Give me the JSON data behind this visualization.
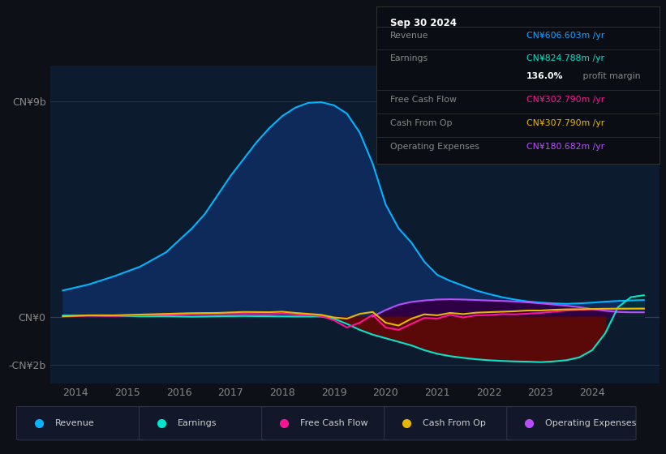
{
  "bg_color": "#0d1117",
  "plot_bg": "#0d1b2e",
  "grid_color": "#263549",
  "yticks_labels": [
    "CN¥9b",
    "CN¥0",
    "-CN¥2b"
  ],
  "yticks_values": [
    9000000000,
    0,
    -2000000000
  ],
  "ylim": [
    -2800000000,
    10500000000
  ],
  "xlim": [
    2013.5,
    2025.3
  ],
  "xticks": [
    2014,
    2015,
    2016,
    2017,
    2018,
    2019,
    2020,
    2021,
    2022,
    2023,
    2024
  ],
  "revenue_color": "#00b4ff",
  "revenue_fill": "#0d2a5a",
  "earnings_color": "#00e5cc",
  "earnings_fill_neg": "#5a0808",
  "earnings_fill_pos": "#003322",
  "fcf_color": "#ff1493",
  "cashop_color": "#e6b800",
  "opex_color": "#b84dff",
  "opex_fill": "#2d0044",
  "revenue_x": [
    2013.75,
    2014.25,
    2014.75,
    2015.25,
    2015.75,
    2016.0,
    2016.25,
    2016.5,
    2016.75,
    2017.0,
    2017.25,
    2017.5,
    2017.75,
    2018.0,
    2018.25,
    2018.5,
    2018.75,
    2019.0,
    2019.25,
    2019.5,
    2019.75,
    2020.0,
    2020.25,
    2020.5,
    2020.75,
    2021.0,
    2021.25,
    2021.5,
    2021.75,
    2022.0,
    2022.25,
    2022.5,
    2022.75,
    2023.0,
    2023.25,
    2023.5,
    2023.75,
    2024.0,
    2024.25,
    2024.5,
    2024.75,
    2025.0
  ],
  "revenue_y": [
    1100000000,
    1350000000,
    1700000000,
    2100000000,
    2700000000,
    3200000000,
    3700000000,
    4300000000,
    5100000000,
    5900000000,
    6600000000,
    7300000000,
    7900000000,
    8400000000,
    8750000000,
    8950000000,
    8980000000,
    8850000000,
    8500000000,
    7700000000,
    6400000000,
    4700000000,
    3700000000,
    3100000000,
    2300000000,
    1750000000,
    1500000000,
    1300000000,
    1100000000,
    950000000,
    820000000,
    720000000,
    640000000,
    590000000,
    560000000,
    540000000,
    560000000,
    590000000,
    630000000,
    660000000,
    680000000,
    700000000
  ],
  "earnings_x": [
    2013.75,
    2014.25,
    2014.75,
    2015.25,
    2015.75,
    2016.25,
    2016.75,
    2017.25,
    2017.75,
    2018.25,
    2018.75,
    2019.0,
    2019.25,
    2019.5,
    2019.75,
    2020.0,
    2020.25,
    2020.5,
    2020.75,
    2021.0,
    2021.25,
    2021.5,
    2021.75,
    2022.0,
    2022.25,
    2022.5,
    2022.75,
    2023.0,
    2023.25,
    2023.5,
    2023.75,
    2024.0,
    2024.25,
    2024.5,
    2024.75,
    2025.0
  ],
  "earnings_y": [
    50000000,
    50000000,
    30000000,
    20000000,
    20000000,
    0,
    20000000,
    30000000,
    20000000,
    10000000,
    10000000,
    -80000000,
    -300000000,
    -550000000,
    -750000000,
    -900000000,
    -1050000000,
    -1200000000,
    -1400000000,
    -1550000000,
    -1650000000,
    -1720000000,
    -1780000000,
    -1820000000,
    -1850000000,
    -1870000000,
    -1880000000,
    -1900000000,
    -1870000000,
    -1820000000,
    -1700000000,
    -1400000000,
    -700000000,
    400000000,
    820000000,
    900000000
  ],
  "fcf_x": [
    2013.75,
    2014.25,
    2014.75,
    2015.25,
    2015.75,
    2016.25,
    2016.75,
    2017.25,
    2017.75,
    2018.0,
    2018.25,
    2018.5,
    2018.75,
    2019.0,
    2019.25,
    2019.5,
    2019.75,
    2020.0,
    2020.25,
    2020.5,
    2020.75,
    2021.0,
    2021.25,
    2021.5,
    2021.75,
    2022.0,
    2022.25,
    2022.5,
    2022.75,
    2023.0,
    2023.25,
    2023.5,
    2023.75,
    2024.0,
    2024.25,
    2024.5,
    2024.75,
    2025.0
  ],
  "fcf_y": [
    10000000,
    40000000,
    30000000,
    60000000,
    90000000,
    100000000,
    110000000,
    120000000,
    110000000,
    130000000,
    100000000,
    70000000,
    30000000,
    -150000000,
    -450000000,
    -250000000,
    80000000,
    -450000000,
    -550000000,
    -300000000,
    -50000000,
    -80000000,
    80000000,
    -30000000,
    60000000,
    70000000,
    110000000,
    100000000,
    130000000,
    160000000,
    210000000,
    260000000,
    290000000,
    310000000,
    320000000,
    320000000,
    330000000,
    340000000
  ],
  "cashop_x": [
    2013.75,
    2014.25,
    2014.75,
    2015.25,
    2015.75,
    2016.25,
    2016.75,
    2017.25,
    2017.75,
    2018.0,
    2018.25,
    2018.5,
    2018.75,
    2019.0,
    2019.25,
    2019.5,
    2019.75,
    2020.0,
    2020.25,
    2020.5,
    2020.75,
    2021.0,
    2021.25,
    2021.5,
    2021.75,
    2022.0,
    2022.25,
    2022.5,
    2022.75,
    2023.0,
    2023.25,
    2023.5,
    2023.75,
    2024.0,
    2024.25,
    2024.5,
    2024.75,
    2025.0
  ],
  "cashop_y": [
    20000000,
    60000000,
    60000000,
    90000000,
    120000000,
    150000000,
    160000000,
    200000000,
    190000000,
    210000000,
    160000000,
    120000000,
    80000000,
    -30000000,
    -80000000,
    120000000,
    200000000,
    -250000000,
    -370000000,
    -80000000,
    100000000,
    60000000,
    160000000,
    110000000,
    170000000,
    190000000,
    210000000,
    230000000,
    260000000,
    260000000,
    290000000,
    310000000,
    315000000,
    325000000,
    335000000,
    340000000,
    340000000,
    340000000
  ],
  "opex_x": [
    2019.75,
    2020.0,
    2020.25,
    2020.5,
    2020.75,
    2021.0,
    2021.25,
    2021.5,
    2021.75,
    2022.0,
    2022.25,
    2022.5,
    2022.75,
    2023.0,
    2023.25,
    2023.5,
    2023.75,
    2024.0,
    2024.25,
    2024.5,
    2024.75,
    2025.0
  ],
  "opex_y": [
    10000000,
    280000000,
    500000000,
    620000000,
    680000000,
    720000000,
    730000000,
    720000000,
    700000000,
    680000000,
    660000000,
    640000000,
    600000000,
    560000000,
    510000000,
    460000000,
    400000000,
    320000000,
    250000000,
    200000000,
    185000000,
    185000000
  ],
  "info_box": {
    "date": "Sep 30 2024",
    "bg_color": "#0a0e14",
    "border_color": "#333333",
    "rows": [
      {
        "label": "Revenue",
        "value": "CN¥606.603m /yr",
        "value_color": "#1a9fff"
      },
      {
        "label": "Earnings",
        "value": "CN¥824.788m /yr",
        "value_color": "#00e5cc"
      },
      {
        "label": "",
        "bold": "136.0%",
        "rest": " profit margin",
        "bold_color": "#ffffff",
        "rest_color": "#888888"
      },
      {
        "label": "Free Cash Flow",
        "value": "CN¥302.790m /yr",
        "value_color": "#ff1493"
      },
      {
        "label": "Cash From Op",
        "value": "CN¥307.790m /yr",
        "value_color": "#e6b800"
      },
      {
        "label": "Operating Expenses",
        "value": "CN¥180.682m /yr",
        "value_color": "#b84dff"
      }
    ]
  },
  "legend_items": [
    {
      "label": "Revenue",
      "color": "#00b4ff"
    },
    {
      "label": "Earnings",
      "color": "#00e5cc"
    },
    {
      "label": "Free Cash Flow",
      "color": "#ff1493"
    },
    {
      "label": "Cash From Op",
      "color": "#e6b800"
    },
    {
      "label": "Operating Expenses",
      "color": "#b84dff"
    }
  ]
}
